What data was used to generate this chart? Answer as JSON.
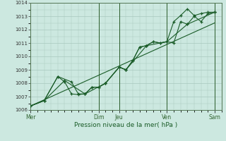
{
  "xlabel": "Pression niveau de la mer( hPa )",
  "bg_color": "#cce8e0",
  "grid_color": "#a8c8be",
  "line_color": "#1a5c28",
  "vline_color": "#2a5c2a",
  "ylim": [
    1006,
    1014
  ],
  "yticks": [
    1006,
    1007,
    1008,
    1009,
    1010,
    1011,
    1012,
    1013,
    1014
  ],
  "day_labels": [
    "Mer",
    "Dim",
    "Jeu",
    "Ven",
    "Sam"
  ],
  "day_positions": [
    0,
    10,
    13,
    20,
    27
  ],
  "xlim": [
    0,
    28
  ],
  "trend_x": [
    0,
    27
  ],
  "trend_y": [
    1006.3,
    1012.5
  ],
  "line1_x": [
    0,
    2,
    4,
    6,
    7,
    8,
    9,
    10,
    11,
    13,
    14,
    15,
    16,
    17,
    18,
    19,
    20,
    21,
    22,
    23,
    24,
    25,
    26,
    27
  ],
  "line1_y": [
    1006.3,
    1006.7,
    1008.5,
    1008.1,
    1007.2,
    1007.2,
    1007.7,
    1007.7,
    1008.0,
    1009.2,
    1009.0,
    1009.7,
    1010.7,
    1010.8,
    1011.1,
    1011.0,
    1011.1,
    1011.0,
    1012.6,
    1012.4,
    1013.0,
    1012.6,
    1013.2,
    1013.3
  ],
  "line2_x": [
    0,
    2,
    4,
    5,
    6,
    7,
    8,
    9,
    10,
    11,
    13,
    14,
    15,
    16,
    17,
    18,
    19,
    20,
    21,
    22,
    23,
    24,
    25,
    26,
    27
  ],
  "line2_y": [
    1006.3,
    1006.7,
    1008.5,
    1008.1,
    1007.2,
    1007.15,
    1007.2,
    1007.7,
    1007.7,
    1008.0,
    1009.2,
    1009.0,
    1009.7,
    1010.7,
    1010.8,
    1011.1,
    1011.0,
    1011.1,
    1012.6,
    1013.05,
    1013.55,
    1013.05,
    1013.2,
    1013.3,
    1013.3
  ],
  "line3_x": [
    0,
    2,
    5,
    8,
    11,
    13,
    14,
    17,
    20,
    23,
    27
  ],
  "line3_y": [
    1006.3,
    1006.7,
    1008.2,
    1007.2,
    1008.0,
    1009.2,
    1009.0,
    1010.8,
    1011.1,
    1012.4,
    1013.3
  ]
}
